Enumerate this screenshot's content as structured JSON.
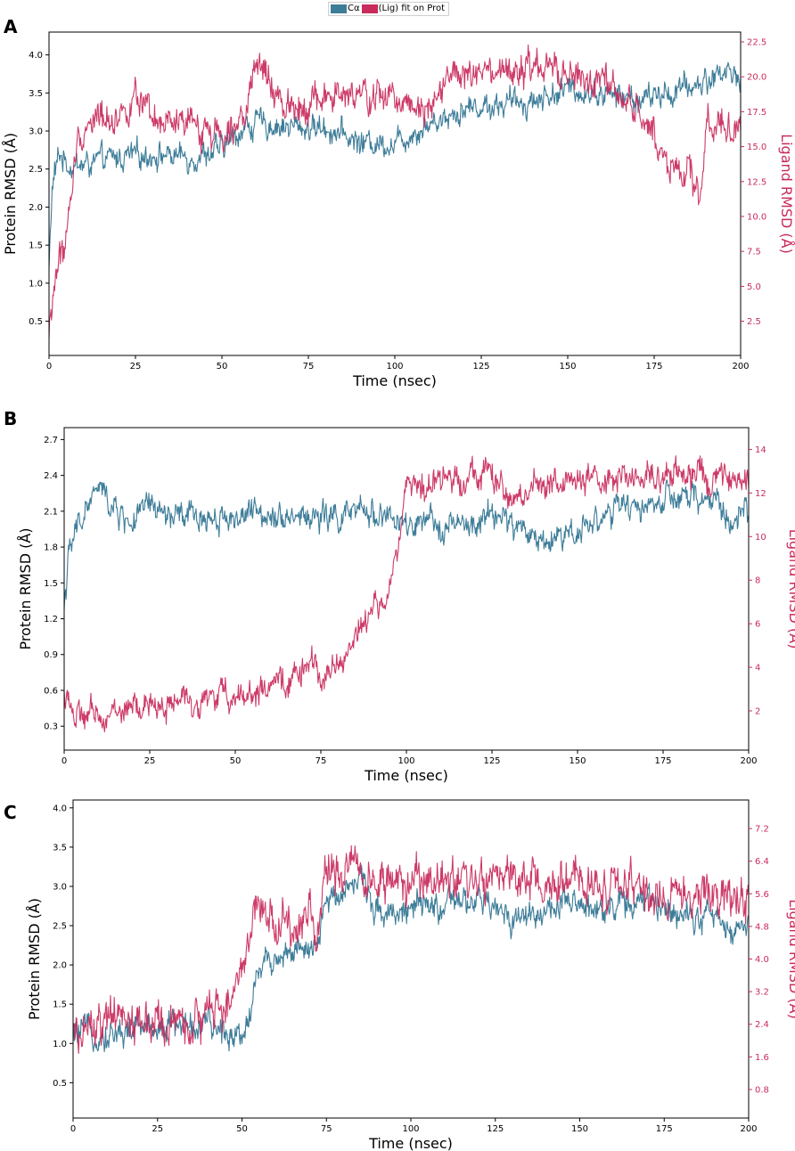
{
  "legend": {
    "protein_label": "Cα",
    "ligand_label": "(Lig) fit on Prot",
    "protein_color": "#3e7d99",
    "ligand_color": "#c92c5c"
  },
  "chart_data": [
    {
      "type": "line",
      "panel": "A",
      "xlabel": "Time (nsec)",
      "ylabel_left": "Protein RMSD (Å)",
      "ylabel_right": "Ligand RMSD (Å)",
      "xlim": [
        0,
        200
      ],
      "ylim_left": [
        0.05,
        4.3
      ],
      "ylim_right": [
        0.05,
        23.2
      ],
      "xticks": [
        0,
        25,
        50,
        75,
        100,
        125,
        150,
        175,
        200
      ],
      "yticks_left": [
        0.5,
        1.0,
        1.5,
        2.0,
        2.5,
        3.0,
        3.5,
        4.0
      ],
      "ytick_labels_left": [
        "0.5",
        "1.0",
        "1.5",
        "2.0",
        "2.5",
        "3.0",
        "3.5",
        "4.0"
      ],
      "yticks_right": [
        2.5,
        5.0,
        7.5,
        10.0,
        12.5,
        15.0,
        17.5,
        20.0,
        22.5
      ],
      "ytick_labels_right": [
        "2.5",
        "5.0",
        "7.5",
        "10.0",
        "12.5",
        "15.0",
        "17.5",
        "20.0",
        "22.5"
      ],
      "series": [
        {
          "name": "Cα",
          "axis": "left",
          "color": "#3e7d99",
          "noise": 0.13,
          "x": [
            0,
            1,
            3,
            6,
            10,
            20,
            30,
            40,
            50,
            55,
            60,
            70,
            80,
            90,
            100,
            110,
            120,
            130,
            140,
            150,
            160,
            170,
            180,
            190,
            195,
            200
          ],
          "y": [
            1.2,
            2.3,
            2.7,
            2.55,
            2.55,
            2.65,
            2.7,
            2.65,
            2.75,
            3.0,
            3.1,
            3.05,
            3.05,
            2.85,
            2.85,
            3.1,
            3.3,
            3.35,
            3.4,
            3.55,
            3.5,
            3.4,
            3.5,
            3.65,
            3.8,
            3.7
          ]
        },
        {
          "name": "(Lig) fit on Prot",
          "axis": "right",
          "color": "#c92c5c",
          "noise": 0.9,
          "x": [
            0,
            2,
            5,
            8,
            12,
            20,
            25,
            30,
            40,
            50,
            55,
            58,
            60,
            62,
            65,
            70,
            80,
            90,
            100,
            110,
            115,
            120,
            130,
            140,
            145,
            150,
            160,
            165,
            170,
            175,
            180,
            185,
            188,
            190,
            193,
            196,
            200
          ],
          "y": [
            1.5,
            6.0,
            8.5,
            15.0,
            17.0,
            17.2,
            18.5,
            16.5,
            16.5,
            16.0,
            17.5,
            18.0,
            21.0,
            20.5,
            18.5,
            18.0,
            18.5,
            18.5,
            18.5,
            18.0,
            20.0,
            20.0,
            20.0,
            20.5,
            20.5,
            20.0,
            19.5,
            18.5,
            17.5,
            16.0,
            13.5,
            13.0,
            11.0,
            16.0,
            17.5,
            16.5,
            15.5
          ]
        }
      ]
    },
    {
      "type": "line",
      "panel": "B",
      "xlabel": "Time (nsec)",
      "ylabel_left": "Protein RMSD (Å)",
      "ylabel_right": "Ligand RMSD (Å)",
      "xlim": [
        0,
        200
      ],
      "ylim_left": [
        0.1,
        2.8
      ],
      "ylim_right": [
        0.2,
        15.0
      ],
      "xticks": [
        0,
        25,
        50,
        75,
        100,
        125,
        150,
        175,
        200
      ],
      "yticks_left": [
        0.3,
        0.6,
        0.9,
        1.2,
        1.5,
        1.8,
        2.1,
        2.4,
        2.7
      ],
      "ytick_labels_left": [
        "0.3",
        "0.6",
        "0.9",
        "1.2",
        "1.5",
        "1.8",
        "2.1",
        "2.4",
        "2.7"
      ],
      "yticks_right": [
        2,
        4,
        6,
        8,
        10,
        12,
        14
      ],
      "ytick_labels_right": [
        "2",
        "4",
        "6",
        "8",
        "10",
        "12",
        "14"
      ],
      "series": [
        {
          "name": "Cα",
          "axis": "left",
          "color": "#3e7d99",
          "noise": 0.09,
          "x": [
            0,
            1,
            3,
            6,
            10,
            15,
            20,
            25,
            30,
            40,
            50,
            60,
            70,
            80,
            90,
            95,
            100,
            110,
            120,
            125,
            130,
            140,
            150,
            160,
            170,
            180,
            190,
            195,
            200
          ],
          "y": [
            1.3,
            1.65,
            1.9,
            2.1,
            2.3,
            2.1,
            2.0,
            2.15,
            2.05,
            2.05,
            2.05,
            2.1,
            2.05,
            2.05,
            2.1,
            2.05,
            1.95,
            2.0,
            1.95,
            2.1,
            2.0,
            1.85,
            1.95,
            2.1,
            2.15,
            2.2,
            2.2,
            2.0,
            2.1
          ]
        },
        {
          "name": "(Lig) fit on Prot",
          "axis": "right",
          "color": "#c92c5c",
          "noise": 0.5,
          "x": [
            0,
            1,
            3,
            10,
            20,
            30,
            40,
            50,
            60,
            65,
            70,
            75,
            80,
            85,
            90,
            95,
            98,
            100,
            105,
            110,
            120,
            125,
            130,
            135,
            140,
            150,
            160,
            170,
            180,
            190,
            200
          ],
          "y": [
            2.5,
            3.0,
            1.6,
            1.8,
            2.1,
            2.3,
            2.5,
            2.8,
            2.9,
            3.3,
            4.0,
            3.8,
            4.0,
            5.5,
            6.5,
            7.5,
            9.5,
            13.0,
            12.0,
            12.5,
            13.0,
            12.8,
            11.5,
            12.0,
            12.5,
            12.5,
            12.5,
            12.8,
            13.0,
            12.5,
            12.3
          ]
        }
      ]
    },
    {
      "type": "line",
      "panel": "C",
      "xlabel": "Time (nsec)",
      "ylabel_left": "Protein RMSD (Å)",
      "ylabel_right": "Ligand RMSD (Å)",
      "xlim": [
        0,
        200
      ],
      "ylim_left": [
        0.05,
        4.1
      ],
      "ylim_right": [
        0.1,
        7.9
      ],
      "xticks": [
        0,
        25,
        50,
        75,
        100,
        125,
        150,
        175,
        200
      ],
      "yticks_left": [
        0.5,
        1.0,
        1.5,
        2.0,
        2.5,
        3.0,
        3.5,
        4.0
      ],
      "ytick_labels_left": [
        "0.5",
        "1.0",
        "1.5",
        "2.0",
        "2.5",
        "3.0",
        "3.5",
        "4.0"
      ],
      "yticks_right": [
        0.8,
        1.6,
        2.4,
        3.2,
        4.0,
        4.8,
        5.6,
        6.4,
        7.2
      ],
      "ytick_labels_right": [
        "0.8",
        "1.6",
        "2.4",
        "3.2",
        "4.0",
        "4.8",
        "5.6",
        "6.4",
        "7.2"
      ],
      "series": [
        {
          "name": "Cα",
          "axis": "left",
          "color": "#3e7d99",
          "noise": 0.14,
          "x": [
            0,
            5,
            10,
            20,
            30,
            40,
            45,
            50,
            52,
            55,
            60,
            65,
            70,
            72,
            75,
            80,
            85,
            90,
            100,
            110,
            120,
            130,
            140,
            150,
            160,
            170,
            180,
            190,
            195,
            200
          ],
          "y": [
            1.1,
            1.15,
            1.1,
            1.2,
            1.25,
            1.2,
            1.15,
            1.15,
            1.3,
            2.0,
            2.1,
            2.2,
            2.1,
            2.2,
            2.8,
            3.0,
            3.1,
            2.7,
            2.7,
            2.75,
            2.8,
            2.6,
            2.7,
            2.75,
            2.75,
            2.8,
            2.7,
            2.6,
            2.4,
            2.6
          ]
        },
        {
          "name": "(Lig) fit on Prot",
          "axis": "right",
          "color": "#c92c5c",
          "noise": 0.4,
          "x": [
            0,
            5,
            10,
            15,
            20,
            30,
            35,
            40,
            45,
            50,
            52,
            54,
            57,
            60,
            65,
            70,
            72,
            75,
            80,
            85,
            90,
            100,
            110,
            120,
            130,
            140,
            150,
            160,
            170,
            180,
            190,
            200
          ],
          "y": [
            2.0,
            2.3,
            2.4,
            2.6,
            2.4,
            2.4,
            2.3,
            2.6,
            3.0,
            3.4,
            4.5,
            5.5,
            5.3,
            4.8,
            4.8,
            5.2,
            4.5,
            6.2,
            6.2,
            6.4,
            5.8,
            5.8,
            5.9,
            6.0,
            5.9,
            5.8,
            5.8,
            5.8,
            5.6,
            5.6,
            5.5,
            5.5
          ]
        }
      ]
    }
  ]
}
